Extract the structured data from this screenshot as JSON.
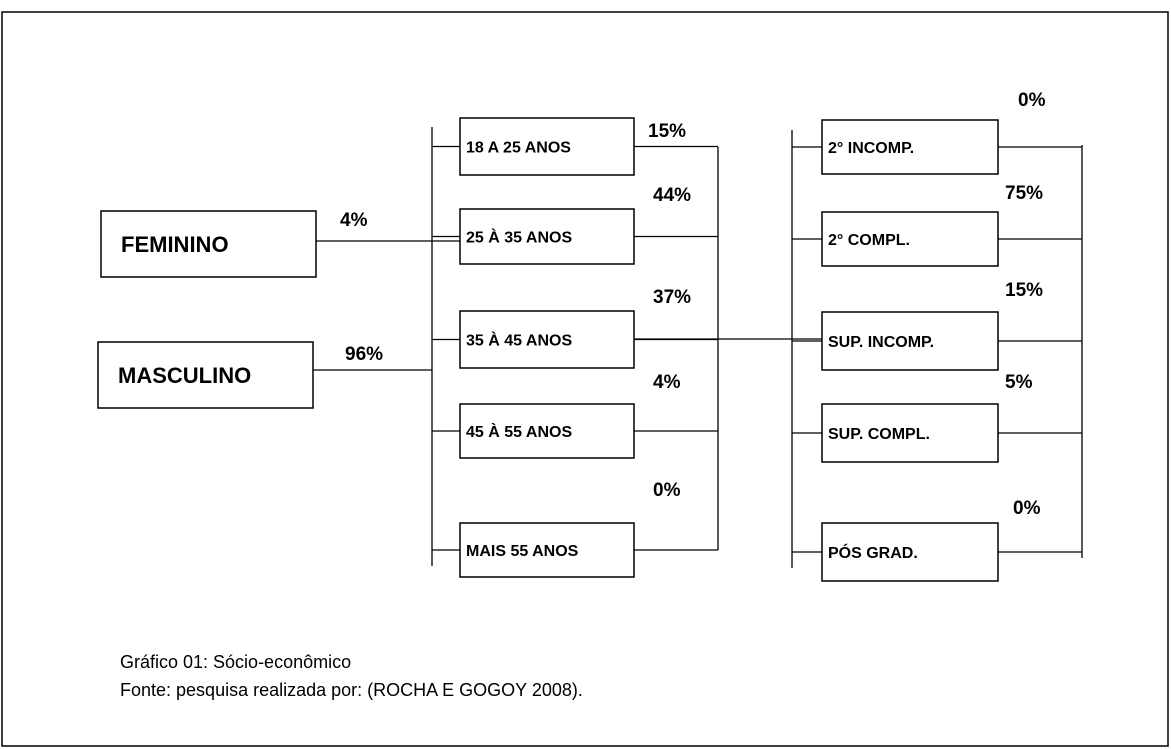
{
  "gender": [
    {
      "label": "FEMININO",
      "percent": "4%"
    },
    {
      "label": "MASCULINO",
      "percent": "96%"
    }
  ],
  "age": [
    {
      "label": "18 A 25 ANOS",
      "percent": "15%"
    },
    {
      "label": "25 À 35 ANOS",
      "percent": "44%"
    },
    {
      "label": "35 À 45 ANOS",
      "percent": "37%"
    },
    {
      "label": "45 À 55 ANOS",
      "percent": "4%"
    },
    {
      "label": "MAIS 55 ANOS",
      "percent": "0%"
    }
  ],
  "education": [
    {
      "label": "2° INCOMP.",
      "percent": "0%"
    },
    {
      "label": "2° COMPL.",
      "percent": "75%"
    },
    {
      "label": "SUP. INCOMP.",
      "percent": "15%"
    },
    {
      "label": "SUP. COMPL.",
      "percent": "5%"
    },
    {
      "label": "PÓS GRAD.",
      "percent": "0%"
    }
  ],
  "caption": {
    "title": "Gráfico 01: Sócio-econômico",
    "source": "Fonte: pesquisa realizada por: (ROCHA E GOGOY 2008)."
  }
}
